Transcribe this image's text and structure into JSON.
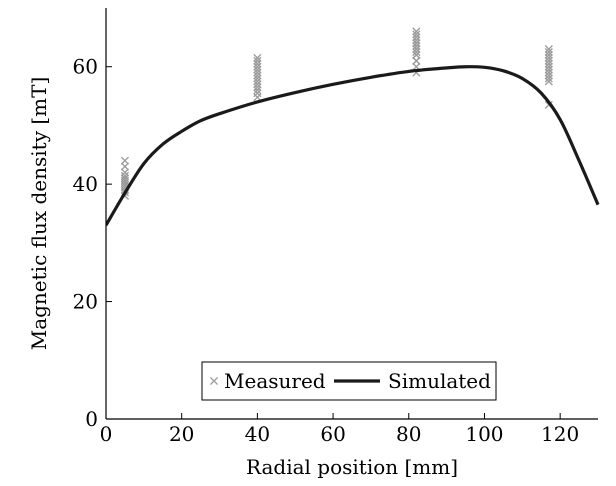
{
  "chart_data": {
    "type": "line",
    "title": "",
    "xlabel": "Radial position [mm]",
    "ylabel": "Magnetic flux density [mT]",
    "xlim": [
      0,
      130
    ],
    "ylim": [
      0,
      70
    ],
    "xticks": [
      0,
      20,
      40,
      60,
      80,
      100,
      120
    ],
    "yticks": [
      0,
      20,
      40,
      60
    ],
    "grid": false,
    "legend_position": "bottom-center",
    "series": [
      {
        "name": "Measured",
        "kind": "scatter",
        "marker": "x",
        "color": "#9a9a9a",
        "x": [
          5,
          5,
          5,
          5,
          5,
          5,
          5,
          5,
          5,
          5,
          5,
          5,
          40,
          40,
          40,
          40,
          40,
          40,
          40,
          40,
          40,
          40,
          40,
          40,
          40,
          40,
          82,
          82,
          82,
          82,
          82,
          82,
          82,
          82,
          82,
          82,
          82,
          82,
          82,
          82,
          82,
          82,
          117,
          117,
          117,
          117,
          117,
          117,
          117,
          117,
          117,
          117,
          117,
          117,
          117
        ],
        "y": [
          38,
          38.6,
          39,
          39.4,
          39.8,
          40.2,
          40.6,
          41,
          41.4,
          42,
          43,
          44,
          54.8,
          55.5,
          56,
          56.5,
          57,
          57.5,
          58,
          58.5,
          59,
          59.5,
          60,
          60.5,
          61,
          61.5,
          59,
          60,
          61,
          62,
          62.5,
          63,
          63.5,
          64,
          64.5,
          65,
          65.5,
          66,
          64,
          63,
          62,
          61,
          53.5,
          57.5,
          58,
          58.5,
          59,
          59.5,
          60,
          60.5,
          61,
          61.5,
          62,
          62.5,
          63
        ]
      },
      {
        "name": "Simulated",
        "kind": "line",
        "color": "#1a1a1a",
        "x": [
          0,
          5,
          10,
          15,
          20,
          25,
          30,
          40,
          50,
          60,
          70,
          80,
          90,
          95,
          100,
          105,
          110,
          115,
          120,
          125,
          130
        ],
        "y": [
          33,
          38.5,
          43.5,
          46.8,
          49,
          50.8,
          52,
          54,
          55.6,
          57,
          58.2,
          59.2,
          59.8,
          60,
          59.9,
          59.3,
          58,
          55.5,
          51,
          44,
          36.5
        ]
      }
    ]
  }
}
